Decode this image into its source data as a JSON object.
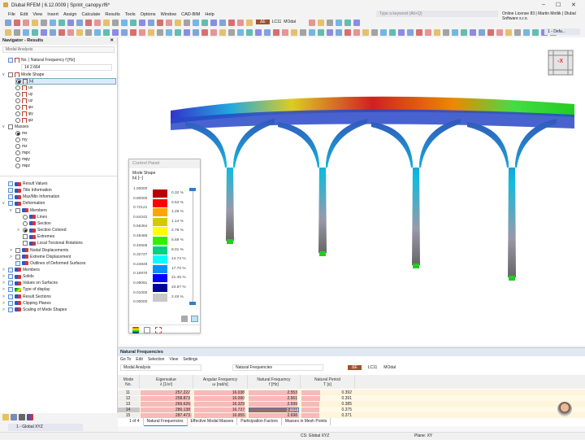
{
  "app": {
    "title": "Dlubal RFEM | 6.12.0009 | Sprint_canopy.rf6*",
    "search_placeholder": "Type a keyword (Alt+Q)",
    "license": "Online License 83 | Martin Motlik | Dlubal Software s.r.o.",
    "minimize": "–",
    "maximize": "☐",
    "close": "✕"
  },
  "menu": [
    "File",
    "Edit",
    "View",
    "Insert",
    "Assign",
    "Calculate",
    "Results",
    "Tools",
    "Options",
    "Window",
    "CAD-BIM",
    "Help"
  ],
  "toolbar": {
    "lc_badge": "ΔE",
    "lc": "LC11",
    "lc_name": "MOdal",
    "view_combo": "1 - Defa..."
  },
  "navigator": {
    "title": "Navigator - Results",
    "analysis": "Modal Analysis",
    "freq_label": "No. | Natural Frequency f [Hz]",
    "freq_value": "14  2.664",
    "mode_shape": "Mode Shape",
    "mode_items": [
      "|u|",
      "ux",
      "uy",
      "uz",
      "φx",
      "φy",
      "φz"
    ],
    "masses": "Masses",
    "mass_items": [
      "mx",
      "my",
      "mz",
      "mφx",
      "mφy",
      "mφz"
    ],
    "tree": [
      {
        "label": "Result Values",
        "lvl": 0
      },
      {
        "label": "Title Information",
        "lvl": 0
      },
      {
        "label": "Max/Min Information",
        "lvl": 0
      },
      {
        "label": "Deformation",
        "lvl": 0,
        "exp": "v"
      },
      {
        "label": "Members",
        "lvl": 1,
        "exp": "v"
      },
      {
        "label": "Lines",
        "lvl": 2,
        "radio": true
      },
      {
        "label": "Section",
        "lvl": 2,
        "radio": true
      },
      {
        "label": "Section Colored",
        "lvl": 2,
        "radio": true,
        "on": true,
        "exp": ">"
      },
      {
        "label": "Extremes",
        "lvl": 2
      },
      {
        "label": "Local Torsional Rotations",
        "lvl": 2
      },
      {
        "label": "Nodal Displacements",
        "lvl": 1,
        "exp": ">"
      },
      {
        "label": "Extreme Displacement",
        "lvl": 1,
        "exp": ">"
      },
      {
        "label": "Outlines of Deformed Surfaces",
        "lvl": 1
      },
      {
        "label": "Members",
        "lvl": -1,
        "exp": ">"
      },
      {
        "label": "Solids",
        "lvl": -1,
        "exp": ">"
      },
      {
        "label": "Values on Surfaces",
        "lvl": -1,
        "exp": ">"
      },
      {
        "label": "Type of display",
        "lvl": -1,
        "exp": ">",
        "rainbow": true
      },
      {
        "label": "Result Sections",
        "lvl": -1,
        "exp": ">"
      },
      {
        "label": "Clipping Planes",
        "lvl": -1,
        "exp": ">"
      },
      {
        "label": "Scaling of Mode Shapes",
        "lvl": -1,
        "exp": ">"
      }
    ],
    "coord_system": "1 - Global XYZ"
  },
  "view": {
    "cube_label": "-X"
  },
  "control_panel": {
    "title": "Control Panel",
    "heading": "Mode Shape",
    "unit": "|u| [--]",
    "values": [
      "1.00000",
      "0.80000",
      "0.72121",
      "0.64242",
      "0.56364",
      "0.48485",
      "0.40606",
      "0.32727",
      "0.24848",
      "0.16970",
      "0.09091",
      "0.01000",
      "0.00000"
    ],
    "colors": [
      "#b40000",
      "#ff0000",
      "#ffa500",
      "#d4c800",
      "#ffff00",
      "#33ee00",
      "#00d080",
      "#00ffff",
      "#0090ff",
      "#0000ff",
      "#00009a",
      "#c8c8c8"
    ],
    "percents": [
      "0.32 %",
      "0.53 %",
      "1.29 %",
      "1.14 %",
      "2.78 %",
      "5.69 %",
      "8.01 %",
      "14.74 %",
      "17.70 %",
      "21.45 %",
      "23.87 %",
      "2.49 %"
    ]
  },
  "results": {
    "title": "Natural Frequencies",
    "menu": [
      "Go To",
      "Edit",
      "Selection",
      "View",
      "Settings"
    ],
    "analysis": "Modal Analysis",
    "table_combo": "Natural Frequencies",
    "lc_badge": "ΔE",
    "lc": "LC11",
    "lc_name": "MOdal",
    "columns": [
      {
        "h1": "Mode",
        "h2": "No."
      },
      {
        "h1": "Eigenvalue",
        "h2": "λ [1/s²]"
      },
      {
        "h1": "Angular Frequency",
        "h2": "ω [rad/s]"
      },
      {
        "h1": "Natural Frequency",
        "h2": "f [Hz]"
      },
      {
        "h1": "Natural Period",
        "h2": "T [s]"
      }
    ],
    "rows": [
      {
        "no": "11",
        "eig": "257.222",
        "ang": "16.038",
        "f": "2.553",
        "T": "0.392",
        "fr": [
          0.96,
          0.96,
          0.96,
          0.36
        ]
      },
      {
        "no": "12",
        "eig": "258.873",
        "ang": "16.090",
        "f": "2.561",
        "T": "0.391",
        "fr": [
          0.97,
          0.96,
          0.96,
          0.36
        ]
      },
      {
        "no": "13",
        "eig": "266.626",
        "ang": "16.329",
        "f": "2.599",
        "T": "0.385",
        "fr": [
          0.98,
          0.97,
          0.97,
          0.35
        ]
      },
      {
        "no": "14",
        "eig": "280.138",
        "ang": "16.737",
        "f": "2.664",
        "T": "0.375",
        "fr": [
          0.99,
          0.99,
          0.99,
          0.34
        ]
      },
      {
        "no": "15",
        "eig": "287.473",
        "ang": "16.955",
        "f": "2.698",
        "T": "0.371",
        "fr": [
          1.0,
          1.0,
          1.0,
          0.34
        ]
      }
    ],
    "selected_row": 3,
    "pager": "1 of 4",
    "tabs": [
      "Natural Frequencies",
      "Effective Modal Masses",
      "Participation Factors",
      "Masses in Mesh Points"
    ],
    "active_tab": 0
  },
  "status": {
    "cs": "CS: Global XYZ",
    "plane": "Plane: XY"
  }
}
